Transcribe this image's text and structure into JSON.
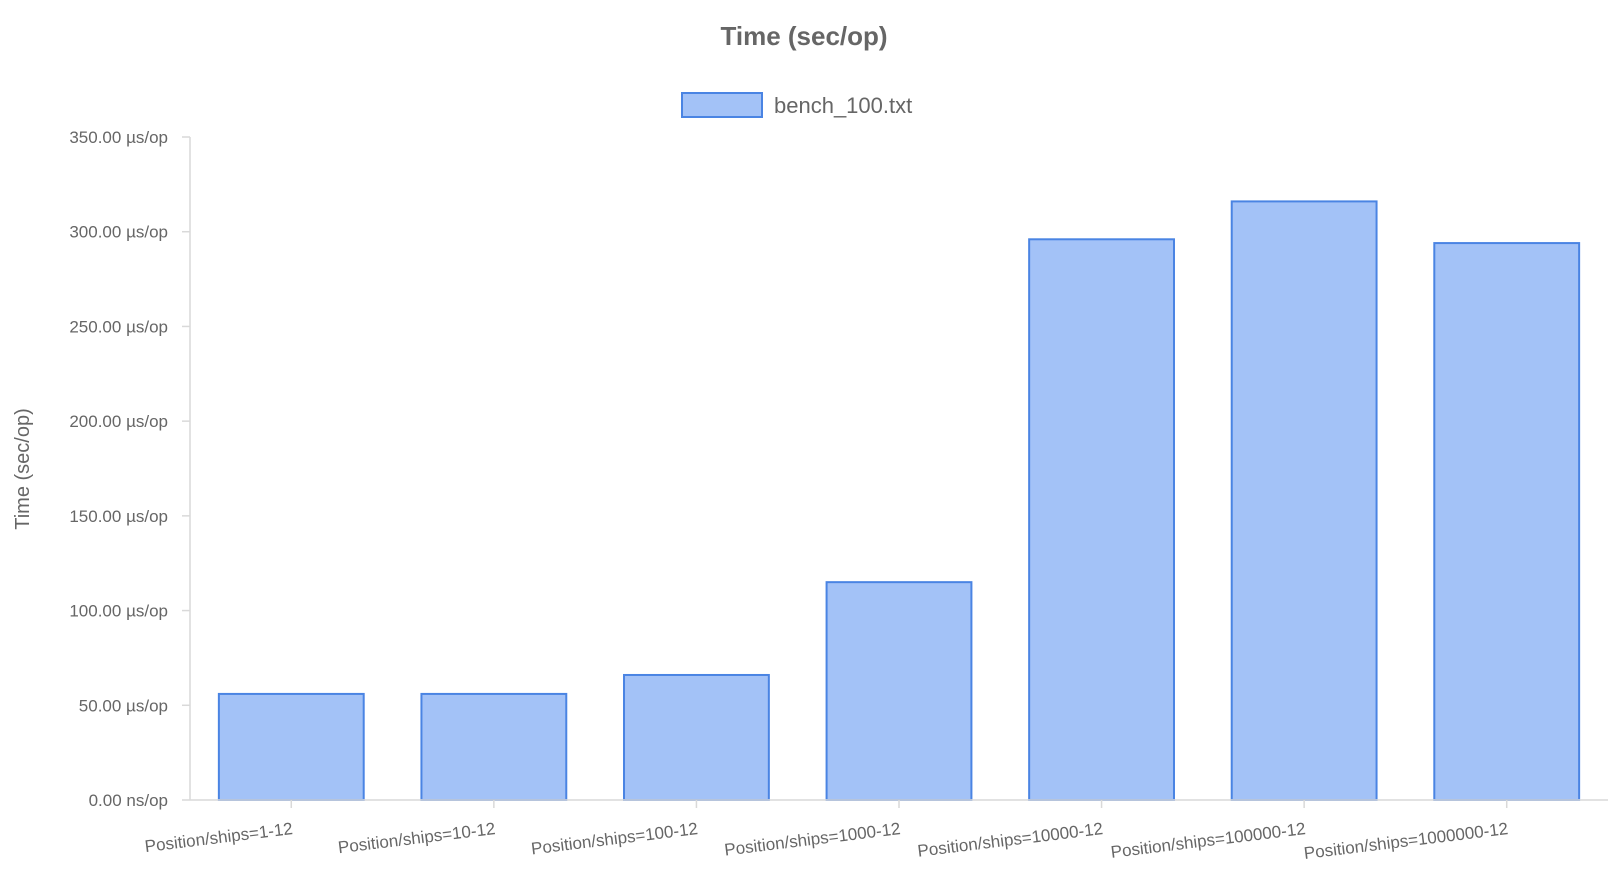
{
  "chart_data": {
    "type": "bar",
    "title": "Time (sec/op)",
    "ylabel": "Time (sec/op)",
    "xlabel": "",
    "categories": [
      "Position/ships=1-12",
      "Position/ships=10-12",
      "Position/ships=100-12",
      "Position/ships=1000-12",
      "Position/ships=10000-12",
      "Position/ships=100000-12",
      "Position/ships=1000000-12"
    ],
    "series": [
      {
        "name": "bench_100.txt",
        "values": [
          56,
          56,
          66,
          115,
          296,
          316,
          294
        ],
        "fill": "#a3c2f7",
        "stroke": "#4a84e3"
      }
    ],
    "value_unit": "µs/op",
    "ylim": [
      0,
      350
    ],
    "y_ticks": [
      {
        "value": 0,
        "label": "0.00 ns/op"
      },
      {
        "value": 50,
        "label": "50.00 µs/op"
      },
      {
        "value": 100,
        "label": "100.00 µs/op"
      },
      {
        "value": 150,
        "label": "150.00 µs/op"
      },
      {
        "value": 200,
        "label": "200.00 µs/op"
      },
      {
        "value": 250,
        "label": "250.00 µs/op"
      },
      {
        "value": 300,
        "label": "300.00 µs/op"
      },
      {
        "value": 350,
        "label": "350.00 µs/op"
      }
    ],
    "grid": false,
    "legend_position": "top-center",
    "axis_color": "#d9d9d9",
    "text_color": "#666666"
  }
}
